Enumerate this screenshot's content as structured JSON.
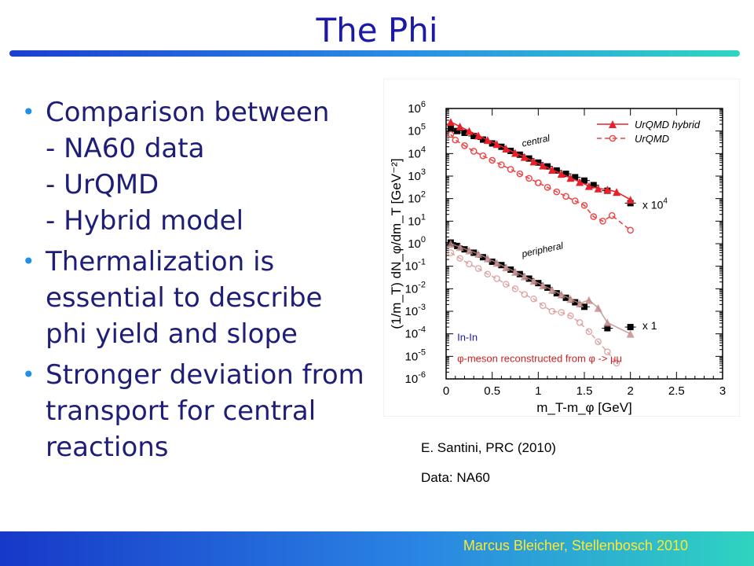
{
  "slide": {
    "title": "The Phi",
    "bullets": [
      {
        "text": "Comparison between",
        "sub": [
          "- NA60 data",
          "- UrQMD",
          "- Hybrid model"
        ]
      },
      {
        "text": "Thermalization is essential to describe phi yield and slope",
        "sub": []
      },
      {
        "text": "Stronger deviation from transport for central reactions",
        "sub": []
      }
    ],
    "citation": "E. Santini,  PRC (2010)",
    "data_source": "Data: NA60",
    "footer": "Marcus Bleicher, Stellenbosch 2010"
  },
  "colors": {
    "title": "#1a1aa6",
    "text": "#1e1e78",
    "bullet": "#1f8fe8",
    "footer_text": "#ffe830",
    "hybrid": "#e8202a",
    "urqmd": "#ee4444",
    "data": "#000000"
  },
  "chart_data": {
    "type": "scatter",
    "xlabel": "m_T-m_φ [GeV]",
    "ylabel": "(1/m_T) dN_φ/dm_T [GeV⁻²]",
    "xlim": [
      0,
      3
    ],
    "ylim_log10": [
      -6,
      6
    ],
    "x_ticks": [
      "0",
      "0.5",
      "1",
      "1.5",
      "2",
      "2.5",
      "3"
    ],
    "y_ticks": [
      "10-6",
      "10-5",
      "10-4",
      "10-3",
      "10-2",
      "10-1",
      "100",
      "101",
      "102",
      "103",
      "104",
      "105",
      "106"
    ],
    "y_scale": "log",
    "legend": [
      {
        "label": "UrQMD hybrid",
        "style": "solid line, filled triangles"
      },
      {
        "label": "UrQMD",
        "style": "dashed line, open circles"
      }
    ],
    "legend_position": "top-right",
    "annotations": {
      "central": "central",
      "peripheral": "peripheral",
      "scale_central": "x 10",
      "scale_central_exp": "4",
      "scale_peripheral": "x 1",
      "system": "In-In",
      "reconstruction": "φ-meson reconstructed from φ -> μμ"
    },
    "series": [
      {
        "name": "NA60 data (central)",
        "panel": "central",
        "x": [
          0.05,
          0.12,
          0.2,
          0.3,
          0.4,
          0.5,
          0.6,
          0.7,
          0.8,
          0.9,
          1.0,
          1.1,
          1.2,
          1.3,
          1.4,
          1.5,
          1.6,
          1.75,
          2.0
        ],
        "log10_y": [
          5.1,
          5.0,
          4.92,
          4.78,
          4.62,
          4.45,
          4.3,
          4.12,
          3.95,
          3.78,
          3.6,
          3.43,
          3.25,
          3.1,
          2.95,
          2.8,
          2.6,
          2.35,
          1.8
        ]
      },
      {
        "name": "UrQMD hybrid (central)",
        "panel": "central",
        "x": [
          0.05,
          0.15,
          0.25,
          0.35,
          0.45,
          0.55,
          0.65,
          0.75,
          0.85,
          0.95,
          1.05,
          1.15,
          1.25,
          1.35,
          1.45,
          1.55,
          1.65,
          1.75,
          1.85,
          2.0
        ],
        "log10_y": [
          5.4,
          5.2,
          5.0,
          4.8,
          4.6,
          4.42,
          4.22,
          4.03,
          3.85,
          3.65,
          3.47,
          3.28,
          3.1,
          2.92,
          2.74,
          2.56,
          2.45,
          2.4,
          2.3,
          1.95
        ]
      },
      {
        "name": "UrQMD (central)",
        "panel": "central",
        "x": [
          0.05,
          0.1,
          0.2,
          0.3,
          0.4,
          0.5,
          0.6,
          0.7,
          0.8,
          0.9,
          1.0,
          1.1,
          1.2,
          1.3,
          1.4,
          1.5,
          1.6,
          1.7,
          1.8,
          2.0
        ],
        "log10_y": [
          4.85,
          4.6,
          4.35,
          4.1,
          3.9,
          3.7,
          3.5,
          3.3,
          3.1,
          2.9,
          2.7,
          2.5,
          2.3,
          2.1,
          1.9,
          1.7,
          1.2,
          1.0,
          1.25,
          0.6
        ]
      },
      {
        "name": "NA60 data (peripheral)",
        "panel": "peripheral",
        "x": [
          0.05,
          0.12,
          0.2,
          0.3,
          0.4,
          0.5,
          0.6,
          0.7,
          0.8,
          0.9,
          1.0,
          1.1,
          1.2,
          1.3,
          1.4,
          1.5,
          1.75,
          2.0
        ],
        "log10_y": [
          0.05,
          -0.1,
          -0.25,
          -0.4,
          -0.6,
          -0.8,
          -0.95,
          -1.15,
          -1.35,
          -1.55,
          -1.75,
          -1.95,
          -2.2,
          -2.4,
          -2.6,
          -2.8,
          -3.75,
          -3.7
        ]
      },
      {
        "name": "UrQMD hybrid (peripheral)",
        "panel": "peripheral",
        "x": [
          0.05,
          0.15,
          0.25,
          0.35,
          0.45,
          0.55,
          0.65,
          0.75,
          0.85,
          0.95,
          1.05,
          1.15,
          1.25,
          1.35,
          1.45,
          1.55,
          1.65,
          1.75,
          2.0
        ],
        "log10_y": [
          0.0,
          -0.15,
          -0.3,
          -0.45,
          -0.65,
          -0.85,
          -1.05,
          -1.25,
          -1.45,
          -1.65,
          -1.85,
          -2.05,
          -2.25,
          -2.45,
          -2.65,
          -2.5,
          -2.85,
          -3.5,
          -4.0
        ]
      },
      {
        "name": "UrQMD (peripheral)",
        "panel": "peripheral",
        "x": [
          0.05,
          0.15,
          0.25,
          0.35,
          0.45,
          0.55,
          0.65,
          0.75,
          0.85,
          0.95,
          1.05,
          1.15,
          1.25,
          1.35,
          1.45,
          1.55,
          1.65,
          1.75,
          1.85
        ],
        "log10_y": [
          -0.4,
          -0.65,
          -0.9,
          -1.1,
          -1.35,
          -1.55,
          -1.8,
          -2.0,
          -2.25,
          -2.45,
          -2.75,
          -3.0,
          -3.05,
          -3.2,
          -3.5,
          -3.9,
          -4.35,
          -4.8,
          -5.3
        ]
      }
    ]
  }
}
